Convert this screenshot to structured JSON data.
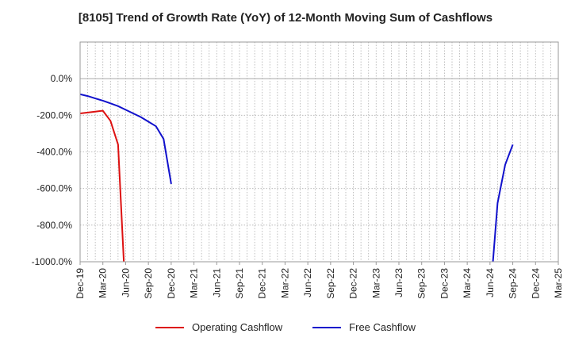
{
  "chart_data": {
    "type": "line",
    "title": "[8105]  Trend of Growth Rate (YoY) of 12-Month Moving Sum of Cashflows",
    "xlabel": "",
    "ylabel": "",
    "ylim": [
      -1000,
      200
    ],
    "y_ticks": [
      "0.0%",
      "-200.0%",
      "-400.0%",
      "-600.0%",
      "-800.0%",
      "-1000.0%"
    ],
    "y_tick_values": [
      0,
      -200,
      -400,
      -600,
      -800,
      -1000
    ],
    "x_tick_labels": [
      "Dec-19",
      "Mar-20",
      "Jun-20",
      "Sep-20",
      "Dec-20",
      "Mar-21",
      "Jun-21",
      "Sep-21",
      "Dec-21",
      "Mar-22",
      "Jun-22",
      "Sep-22",
      "Dec-22",
      "Mar-23",
      "Jun-23",
      "Sep-23",
      "Dec-23",
      "Mar-24",
      "Jun-24",
      "Sep-24",
      "Dec-24",
      "Mar-25"
    ],
    "grid": true,
    "legend_position": "bottom",
    "series": [
      {
        "name": "Operating Cashflow",
        "color": "#dd1111",
        "points": [
          [
            0,
            -190
          ],
          [
            1,
            -185
          ],
          [
            2,
            -180
          ],
          [
            3,
            -175
          ],
          [
            4,
            -230
          ],
          [
            5,
            -360
          ],
          [
            6,
            -1200
          ]
        ]
      },
      {
        "name": "Free Cashflow",
        "color": "#1111cc",
        "points": [
          [
            0,
            -85
          ],
          [
            1,
            -95
          ],
          [
            2,
            -108
          ],
          [
            3,
            -120
          ],
          [
            4,
            -135
          ],
          [
            5,
            -150
          ],
          [
            6,
            -170
          ],
          [
            7,
            -190
          ],
          [
            8,
            -210
          ],
          [
            9,
            -235
          ],
          [
            10,
            -260
          ],
          [
            11,
            -330
          ],
          [
            12,
            -575
          ]
        ]
      },
      {
        "name": "Free Cashflow",
        "color": "#1111cc",
        "points": [
          [
            54,
            -1200
          ],
          [
            55,
            -680
          ],
          [
            56,
            -470
          ],
          [
            57,
            -360
          ]
        ]
      }
    ]
  }
}
